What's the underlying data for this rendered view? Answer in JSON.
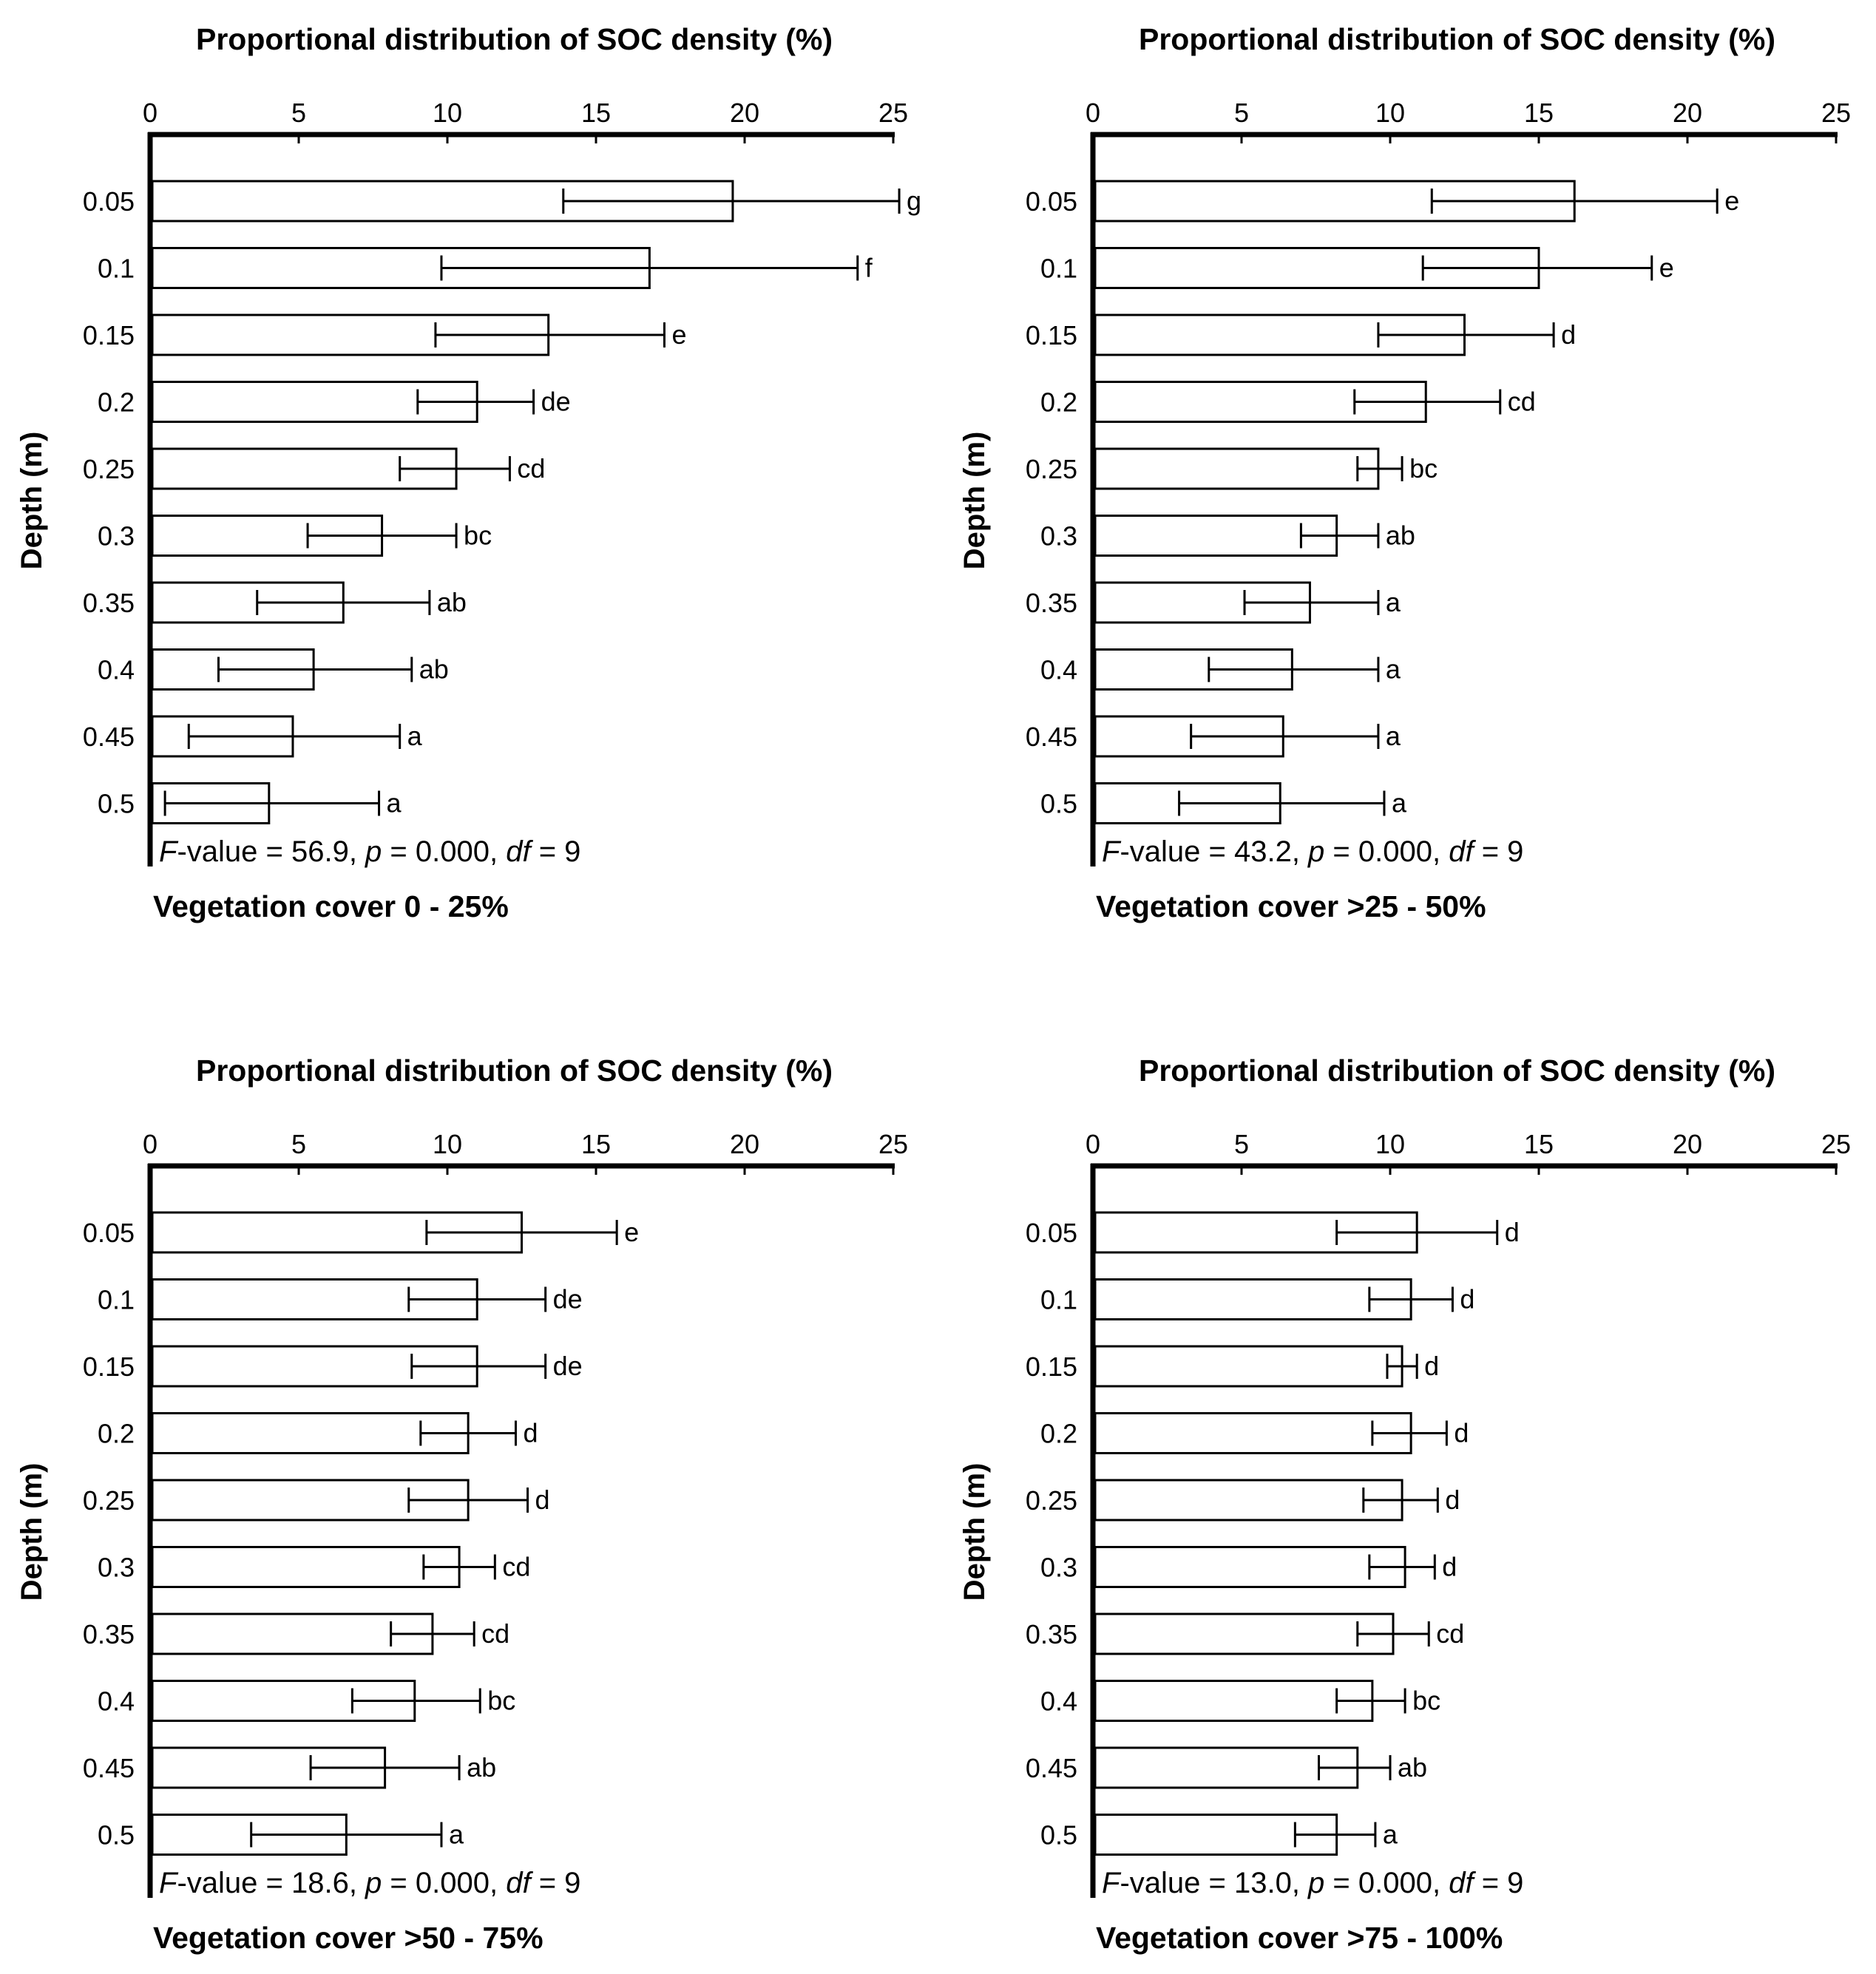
{
  "chart_data": [
    {
      "type": "bar",
      "orientation": "horizontal",
      "title": "Proportional distribution of SOC density (%)",
      "xlabel": "Proportional distribution of SOC density (%)",
      "ylabel": "Depth (m)",
      "xlim": [
        0,
        25
      ],
      "xticks": [
        "0",
        "5",
        "10",
        "15",
        "20",
        "25"
      ],
      "categories": [
        "0.05",
        "0.1",
        "0.15",
        "0.2",
        "0.25",
        "0.3",
        "0.35",
        "0.4",
        "0.45",
        "0.5"
      ],
      "values": [
        19.6,
        16.8,
        13.4,
        11.0,
        10.3,
        7.8,
        6.5,
        5.5,
        4.8,
        4.0
      ],
      "error_low": [
        13.9,
        9.8,
        9.6,
        9.0,
        8.4,
        5.3,
        3.6,
        2.3,
        1.3,
        0.5
      ],
      "error_high": [
        25.2,
        23.8,
        17.3,
        12.9,
        12.1,
        10.3,
        9.4,
        8.8,
        8.4,
        7.7
      ],
      "significance": [
        "g",
        "f",
        "e",
        "de",
        "cd",
        "bc",
        "ab",
        "ab",
        "a",
        "a"
      ],
      "stats": {
        "f_label": "F",
        "f_rest": "-value = 56.9, ",
        "p_label": "p",
        "p_rest": " = 0.000, ",
        "df_label": "df",
        "df_rest": " = 9"
      },
      "panel_label": "Vegetation cover 0 - 25%"
    },
    {
      "type": "bar",
      "orientation": "horizontal",
      "title": "Proportional distribution of SOC density (%)",
      "xlabel": "Proportional distribution of SOC density (%)",
      "ylabel": "Depth (m)",
      "xlim": [
        0,
        25
      ],
      "xticks": [
        "0",
        "5",
        "10",
        "15",
        "20",
        "25"
      ],
      "categories": [
        "0.05",
        "0.1",
        "0.15",
        "0.2",
        "0.25",
        "0.3",
        "0.35",
        "0.4",
        "0.45",
        "0.5"
      ],
      "values": [
        16.2,
        15.0,
        12.5,
        11.2,
        9.6,
        8.2,
        7.3,
        6.7,
        6.4,
        6.3
      ],
      "error_low": [
        11.4,
        11.1,
        9.6,
        8.8,
        8.9,
        7.0,
        5.1,
        3.9,
        3.3,
        2.9
      ],
      "error_high": [
        21.0,
        18.8,
        15.5,
        13.7,
        10.4,
        9.6,
        9.6,
        9.6,
        9.6,
        9.8
      ],
      "significance": [
        "e",
        "e",
        "d",
        "cd",
        "bc",
        "ab",
        "a",
        "a",
        "a",
        "a"
      ],
      "stats": {
        "f_label": "F",
        "f_rest": "-value = 43.2, ",
        "p_label": "p",
        "p_rest": " = 0.000, ",
        "df_label": "df",
        "df_rest": " = 9"
      },
      "panel_label": "Vegetation cover >25 - 50%"
    },
    {
      "type": "bar",
      "orientation": "horizontal",
      "title": "Proportional distribution of SOC density (%)",
      "xlabel": "Proportional distribution of SOC density (%)",
      "ylabel": "Depth (m)",
      "xlim": [
        0,
        25
      ],
      "xticks": [
        "0",
        "5",
        "10",
        "15",
        "20",
        "25"
      ],
      "categories": [
        "0.05",
        "0.1",
        "0.15",
        "0.2",
        "0.25",
        "0.3",
        "0.35",
        "0.4",
        "0.45",
        "0.5"
      ],
      "values": [
        12.5,
        11.0,
        11.0,
        10.7,
        10.7,
        10.4,
        9.5,
        8.9,
        7.9,
        6.6
      ],
      "error_low": [
        9.3,
        8.7,
        8.8,
        9.1,
        8.7,
        9.2,
        8.1,
        6.8,
        5.4,
        3.4
      ],
      "error_high": [
        15.7,
        13.3,
        13.3,
        12.3,
        12.7,
        11.6,
        10.9,
        11.1,
        10.4,
        9.8
      ],
      "significance": [
        "e",
        "de",
        "de",
        "d",
        "d",
        "cd",
        "cd",
        "bc",
        "ab",
        "a"
      ],
      "stats": {
        "f_label": "F",
        "f_rest": "-value = 18.6, ",
        "p_label": "p",
        "p_rest": " = 0.000, ",
        "df_label": "df",
        "df_rest": " = 9"
      },
      "panel_label": "Vegetation cover >50 - 75%"
    },
    {
      "type": "bar",
      "orientation": "horizontal",
      "title": "Proportional distribution of SOC density (%)",
      "xlabel": "Proportional distribution of SOC density (%)",
      "ylabel": "Depth (m)",
      "xlim": [
        0,
        25
      ],
      "xticks": [
        "0",
        "5",
        "10",
        "15",
        "20",
        "25"
      ],
      "categories": [
        "0.05",
        "0.1",
        "0.15",
        "0.2",
        "0.25",
        "0.3",
        "0.35",
        "0.4",
        "0.45",
        "0.5"
      ],
      "values": [
        10.9,
        10.7,
        10.4,
        10.7,
        10.4,
        10.5,
        10.1,
        9.4,
        8.9,
        8.2
      ],
      "error_low": [
        8.2,
        9.3,
        9.9,
        9.4,
        9.1,
        9.3,
        8.9,
        8.2,
        7.6,
        6.8
      ],
      "error_high": [
        13.6,
        12.1,
        10.9,
        11.9,
        11.6,
        11.5,
        11.3,
        10.5,
        10.0,
        9.5
      ],
      "significance": [
        "d",
        "d",
        "d",
        "d",
        "d",
        "d",
        "cd",
        "bc",
        "ab",
        "a"
      ],
      "stats": {
        "f_label": "F",
        "f_rest": "-value = 13.0, ",
        "p_label": "p",
        "p_rest": " = 0.000, ",
        "df_label": "df",
        "df_rest": " = 9"
      },
      "panel_label": "Vegetation cover >75 - 100%"
    }
  ]
}
